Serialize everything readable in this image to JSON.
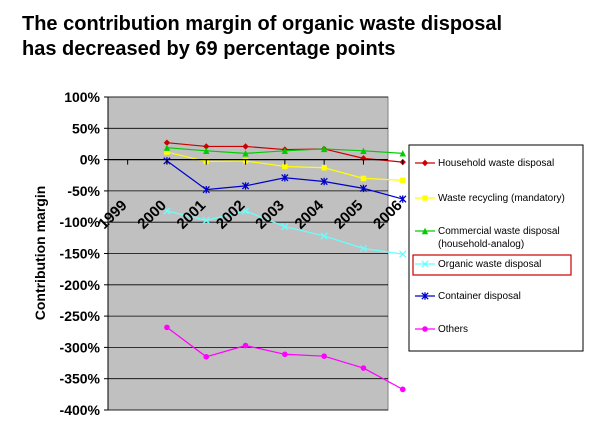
{
  "title": {
    "line1": "The contribution margin of organic waste disposal",
    "line2": "has decreased by 69 percentage points"
  },
  "colors": {
    "plot_background": "#c0c0c0",
    "gridline": "#000000"
  },
  "chart_data": {
    "type": "line",
    "title": "The contribution margin of organic waste disposal has decreased by 69 percentage points",
    "xlabel": "",
    "ylabel": "Contribution margin",
    "categories": [
      "1999",
      "2000",
      "2001",
      "2002",
      "2003",
      "2004",
      "2005",
      "2006"
    ],
    "ylim": [
      -400,
      100
    ],
    "yticks": [
      100,
      50,
      0,
      -50,
      -100,
      -150,
      -200,
      -250,
      -300,
      -350,
      -400
    ],
    "ytick_labels": [
      "100%",
      "50%",
      "0%",
      "-50%",
      "-100%",
      "-150%",
      "-200%",
      "-250%",
      "-300%",
      "-350%",
      "-400%"
    ],
    "grid": true,
    "legend_position": "right",
    "highlighted_series": "Organic waste disposal",
    "series": [
      {
        "name": "Household waste disposal",
        "color": "#cc0000",
        "marker": "diamond",
        "values": [
          null,
          27,
          21,
          21,
          16,
          17,
          2,
          -4
        ]
      },
      {
        "name": "Waste recycling (mandatory)",
        "color": "#ffff00",
        "marker": "square",
        "values": [
          null,
          12,
          -3,
          -2,
          -11,
          -13,
          -30,
          -33
        ]
      },
      {
        "name": "Commercial waste disposal (household-analog)",
        "color": "#00cc00",
        "marker": "triangle",
        "values": [
          null,
          19,
          14,
          10,
          14,
          17,
          14,
          10
        ]
      },
      {
        "name": "Organic waste disposal",
        "color": "#66ffff",
        "marker": "x",
        "values": [
          null,
          -82,
          -97,
          -82,
          -107,
          -122,
          -142,
          -151
        ]
      },
      {
        "name": "Container disposal",
        "color": "#0000cc",
        "marker": "star",
        "values": [
          null,
          -2,
          -48,
          -42,
          -29,
          -35,
          -46,
          -63
        ]
      },
      {
        "name": "Others",
        "color": "#ff00ff",
        "marker": "circle",
        "values": [
          null,
          -268,
          -315,
          -297,
          -311,
          -314,
          -333,
          -367
        ]
      }
    ]
  }
}
